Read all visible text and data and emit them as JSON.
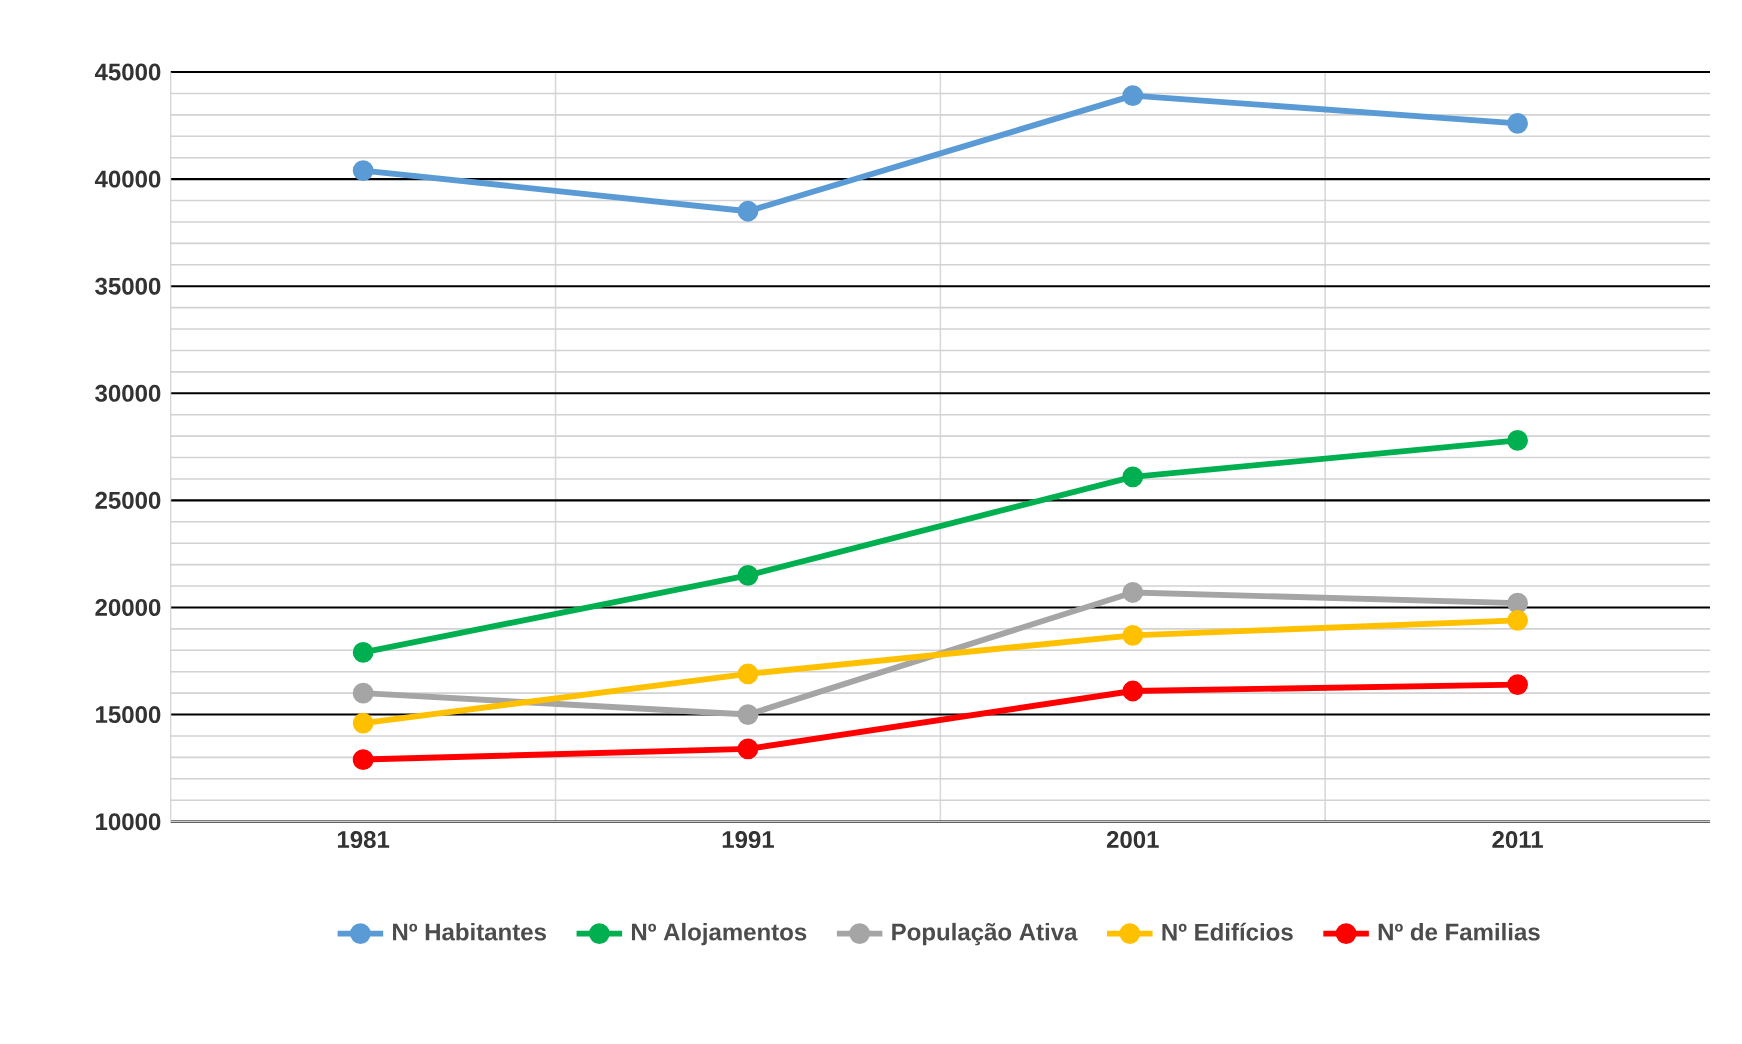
{
  "chart_data": {
    "type": "line",
    "categories": [
      "1981",
      "1991",
      "2001",
      "2011"
    ],
    "series": [
      {
        "name": "Nº Habitantes",
        "color": "#5b9bd5",
        "values": [
          40400,
          38500,
          43900,
          42600
        ]
      },
      {
        "name": "Nº Alojamentos",
        "color": "#00b050",
        "values": [
          17900,
          21500,
          26100,
          27800
        ]
      },
      {
        "name": "População Ativa",
        "color": "#a5a5a5",
        "values": [
          16000,
          15000,
          20700,
          20200
        ]
      },
      {
        "name": "Nº Edifícios",
        "color": "#ffc000",
        "values": [
          14600,
          16900,
          18700,
          19400
        ]
      },
      {
        "name": "Nº de Familias",
        "color": "#ff0000",
        "values": [
          12900,
          13400,
          16100,
          16400
        ]
      }
    ],
    "ylim": [
      10000,
      45000
    ],
    "yticks": [
      10000,
      15000,
      20000,
      25000,
      30000,
      35000,
      40000,
      45000
    ],
    "grid": true,
    "legend": "bottom",
    "marker": "circle",
    "line_style": "solid"
  }
}
